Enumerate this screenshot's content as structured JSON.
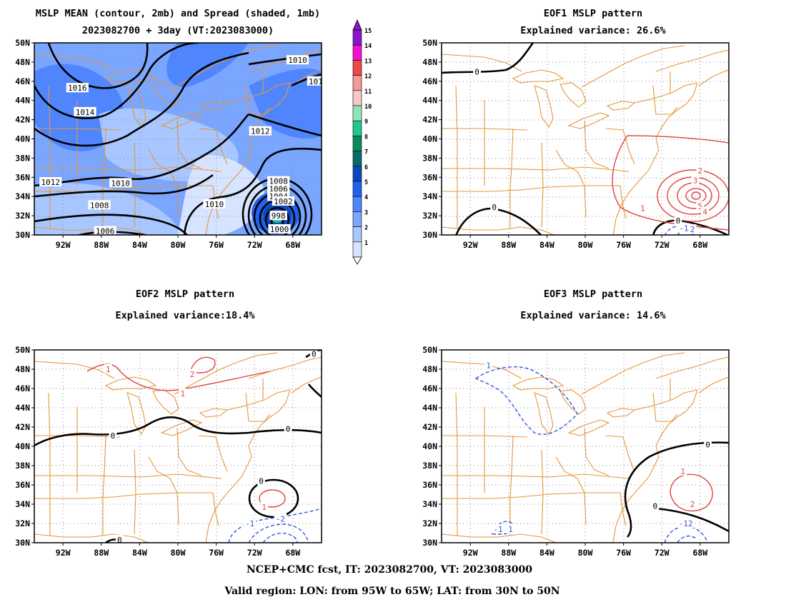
{
  "panels": [
    {
      "id": "mean",
      "title_lines": [
        "MSLP MEAN (contour, 2mb) and Spread (shaded, 1mb)",
        "2023082700 + 3day (VT:2023083000)"
      ],
      "contour_labels": [
        {
          "text": "1016",
          "lon": -90.5,
          "lat": 45.3,
          "color": "#000"
        },
        {
          "text": "1014",
          "lon": -89.7,
          "lat": 42.8,
          "color": "#000"
        },
        {
          "text": "1012",
          "lon": -93.3,
          "lat": 35.5,
          "color": "#000"
        },
        {
          "text": "1010",
          "lon": -86.0,
          "lat": 35.4,
          "color": "#000"
        },
        {
          "text": "1008",
          "lon": -88.2,
          "lat": 33.1,
          "color": "#000"
        },
        {
          "text": "1006",
          "lon": -87.6,
          "lat": 30.4,
          "color": "#000"
        },
        {
          "text": "1010",
          "lon": -67.5,
          "lat": 48.2,
          "color": "#000"
        },
        {
          "text": "1012",
          "lon": -71.4,
          "lat": 40.8,
          "color": "#000"
        },
        {
          "text": "1010",
          "lon": -76.2,
          "lat": 33.2,
          "color": "#000"
        },
        {
          "text": "1008",
          "lon": -69.5,
          "lat": 35.6,
          "color": "#000"
        },
        {
          "text": "1006",
          "lon": -69.5,
          "lat": 34.8,
          "color": "#000"
        },
        {
          "text": "1004",
          "lon": -69.5,
          "lat": 34.0,
          "color": "#000"
        },
        {
          "text": "1002",
          "lon": -69.0,
          "lat": 33.5,
          "color": "#000"
        },
        {
          "text": "998",
          "lon": -69.5,
          "lat": 32.0,
          "color": "#000"
        },
        {
          "text": "1000",
          "lon": -69.4,
          "lat": 30.6,
          "color": "#000"
        },
        {
          "text": "101",
          "lon": -65.6,
          "lat": 46.0,
          "color": "#000"
        }
      ]
    },
    {
      "id": "eof1",
      "title_lines": [
        "EOF1 MSLP pattern",
        "Explained variance: 26.6%"
      ],
      "contour_labels": [
        {
          "text": "0",
          "lon": -91.3,
          "lat": 47.0,
          "color": "#000"
        },
        {
          "text": "0",
          "lon": -89.5,
          "lat": 32.9,
          "color": "#000"
        },
        {
          "text": "1",
          "lon": -74.0,
          "lat": 32.8,
          "color": "#e0443f"
        },
        {
          "text": "2",
          "lon": -68.0,
          "lat": 36.7,
          "color": "#e0443f"
        },
        {
          "text": "3",
          "lon": -68.5,
          "lat": 35.7,
          "color": "#e0443f"
        },
        {
          "text": "5",
          "lon": -68.0,
          "lat": 33.0,
          "color": "#e0443f"
        },
        {
          "text": "4",
          "lon": -67.5,
          "lat": 32.4,
          "color": "#e0443f"
        },
        {
          "text": "0",
          "lon": -70.3,
          "lat": 31.5,
          "color": "#000"
        },
        {
          "text": "-1",
          "lon": -69.7,
          "lat": 30.7,
          "color": "#2f55e0"
        },
        {
          "text": "2",
          "lon": -68.8,
          "lat": 30.6,
          "color": "#2f55e0"
        }
      ]
    },
    {
      "id": "eof2",
      "title_lines": [
        "EOF2 MSLP pattern",
        "Explained variance:18.4%"
      ],
      "contour_labels": [
        {
          "text": "1",
          "lon": -87.3,
          "lat": 48.0,
          "color": "#e0443f"
        },
        {
          "text": "2",
          "lon": -78.5,
          "lat": 47.5,
          "color": "#e0443f"
        },
        {
          "text": "1",
          "lon": -79.5,
          "lat": 45.5,
          "color": "#e0443f"
        },
        {
          "text": "0",
          "lon": -65.8,
          "lat": 49.6,
          "color": "#000"
        },
        {
          "text": "0",
          "lon": -86.8,
          "lat": 41.1,
          "color": "#000"
        },
        {
          "text": "0",
          "lon": -68.5,
          "lat": 41.8,
          "color": "#000"
        },
        {
          "text": "0",
          "lon": -71.3,
          "lat": 36.4,
          "color": "#000"
        },
        {
          "text": "1",
          "lon": -71.0,
          "lat": 33.7,
          "color": "#e0443f"
        },
        {
          "text": "-2",
          "lon": -69.3,
          "lat": 32.5,
          "color": "#2f55e0"
        },
        {
          "text": "-1",
          "lon": -72.5,
          "lat": 32.0,
          "color": "#2f55e0"
        },
        {
          "text": "0",
          "lon": -86.1,
          "lat": 30.3,
          "color": "#000"
        }
      ]
    },
    {
      "id": "eof3",
      "title_lines": [
        "EOF3 MSLP pattern",
        "Explained variance: 14.6%"
      ],
      "contour_labels": [
        {
          "text": "1",
          "lon": -90.1,
          "lat": 48.4,
          "color": "#2f55e0"
        },
        {
          "text": "0",
          "lon": -67.2,
          "lat": 40.2,
          "color": "#000"
        },
        {
          "text": "1",
          "lon": -69.8,
          "lat": 37.4,
          "color": "#e0443f"
        },
        {
          "text": "2",
          "lon": -68.8,
          "lat": 34.0,
          "color": "#e0443f"
        },
        {
          "text": "0",
          "lon": -72.7,
          "lat": 33.8,
          "color": "#000"
        },
        {
          "text": "-1",
          "lon": -89.1,
          "lat": 31.4,
          "color": "#2f55e0"
        },
        {
          "text": "1",
          "lon": -87.8,
          "lat": 31.4,
          "color": "#2f55e0"
        },
        {
          "text": "-12",
          "lon": -69.5,
          "lat": 32.0,
          "color": "#2f55e0"
        }
      ]
    }
  ],
  "axes": {
    "lat_labels": [
      "30N",
      "32N",
      "34N",
      "36N",
      "38N",
      "40N",
      "42N",
      "44N",
      "46N",
      "48N",
      "50N"
    ],
    "lon_labels": [
      "92W",
      "88W",
      "84W",
      "80W",
      "76W",
      "72W",
      "68W"
    ]
  },
  "colorbar": {
    "levels": [
      "1",
      "2",
      "3",
      "4",
      "5",
      "6",
      "7",
      "8",
      "9",
      "10",
      "11",
      "12",
      "13",
      "14",
      "15"
    ],
    "colors": [
      "#d6e4ff",
      "#a8c6ff",
      "#7aa6ff",
      "#4f86ff",
      "#1f62f0",
      "#0c47c0",
      "#086b6b",
      "#0a8a5c",
      "#1fc98a",
      "#8fe6b8",
      "#f7c8c8",
      "#f39a9a",
      "#ee4848",
      "#f012d0",
      "#8a14c8"
    ]
  },
  "colors": {
    "coast": "#e8953a",
    "positive": "#e0443f",
    "negative": "#2f55e0",
    "zero": "#000000"
  },
  "footer": {
    "line1": "NCEP+CMC fcst, IT: 2023082700, VT: 2023083000",
    "line2": "Valid region: LON: from 95W to 65W; LAT: from 30N to 50N"
  }
}
